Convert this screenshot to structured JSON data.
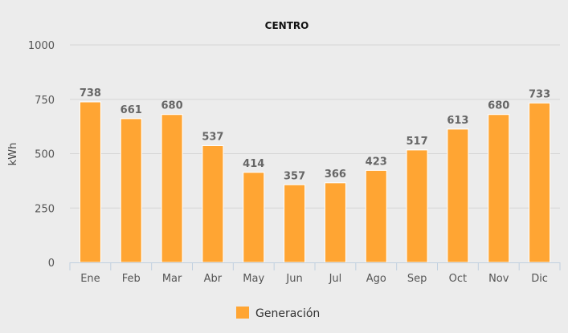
{
  "chart_data": {
    "type": "bar",
    "title": "CENTRO",
    "xlabel": "",
    "ylabel": "kWh",
    "ylim": [
      0,
      1000
    ],
    "yticks": [
      0,
      250,
      500,
      750,
      1000
    ],
    "grid": true,
    "legend_placement": "bottom",
    "categories": [
      "Ene",
      "Feb",
      "Mar",
      "Abr",
      "May",
      "Jun",
      "Jul",
      "Ago",
      "Sep",
      "Oct",
      "Nov",
      "Dic"
    ],
    "series": [
      {
        "name": "Generación",
        "color": "#ffa533",
        "values": [
          738,
          661,
          680,
          537,
          414,
          357,
          366,
          423,
          517,
          613,
          680,
          733
        ]
      }
    ]
  }
}
